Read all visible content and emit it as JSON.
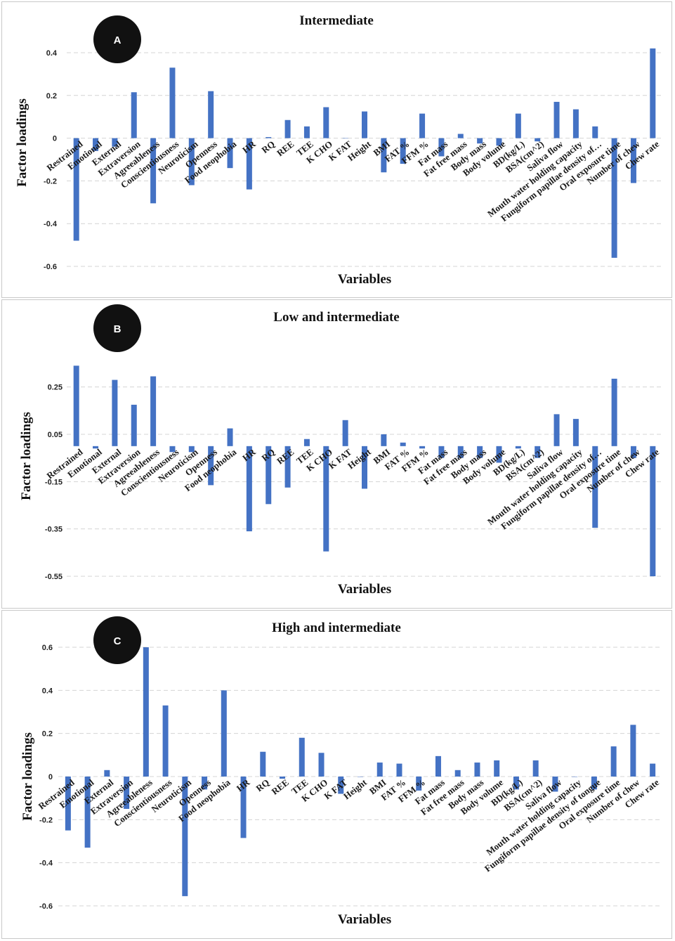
{
  "chart_data": [
    {
      "type": "bar",
      "panel_label": "A",
      "title": "Intermediate",
      "xlabel": "Variables",
      "ylabel": "Factor loadings",
      "ylim": [
        -0.6,
        0.4
      ],
      "yticks": [
        0.4,
        0.2,
        0,
        -0.2,
        -0.4,
        -0.6
      ],
      "ytick_labels": [
        "0.4",
        "0.2",
        "0",
        "-0.2",
        "-0.4",
        "-0.6"
      ],
      "grid": true,
      "categories": [
        "Restrained",
        "Emotional",
        "External",
        "Extraversion",
        "Agreeableness",
        "Conscientiousness",
        "Neuroticism",
        "Openness",
        "Food neophobia",
        "HR",
        "RQ",
        "REE",
        "TEE",
        "K CHO",
        "K FAT",
        "Height",
        "BMI",
        "FAT %",
        "FFM %",
        "Fat mass",
        "Fat free mass",
        "Body mass",
        "Body volume",
        "BD(kg/L)",
        "BSA(cm^2)",
        "Saliva flow",
        "Mouth water holding capacity",
        "Fungiform papillae density of…",
        "Oral exposure time",
        "Number of chew",
        "Chew rate"
      ],
      "series": [
        {
          "name": "Factor loadings",
          "values": [
            -0.48,
            -0.06,
            -0.04,
            0.215,
            -0.305,
            0.33,
            -0.22,
            0.22,
            -0.14,
            -0.24,
            0.005,
            0.085,
            0.055,
            0.145,
            0,
            0.125,
            -0.16,
            -0.12,
            0.115,
            -0.085,
            0.02,
            -0.025,
            -0.035,
            0.115,
            -0.015,
            0.17,
            0.135,
            0.055,
            -0.56,
            -0.21,
            0.42
          ]
        }
      ]
    },
    {
      "type": "bar",
      "panel_label": "B",
      "title": "Low and intermediate",
      "xlabel": "Variables",
      "ylabel": "Factor loadings",
      "ylim": [
        -0.55,
        0.35
      ],
      "yticks": [
        0.25,
        0.05,
        -0.15,
        -0.35,
        -0.55
      ],
      "ytick_labels": [
        "0.25",
        "0.05",
        "-0.15",
        "-0.35",
        "-0.55"
      ],
      "grid": true,
      "categories": [
        "Restrained",
        "Emotional",
        "External",
        "Extraversion",
        "Agreeableness",
        "Conscientiousness",
        "Neuroticism",
        "Openness",
        "Food neophobia",
        "HR",
        "RQ",
        "REE",
        "TEE",
        "K CHO",
        "K FAT",
        "Height",
        "BMI",
        "FAT %",
        "FFM %",
        "Fat mass",
        "Fat free mass",
        "Body mass",
        "Body volume",
        "BD(kg/L)",
        "BSA(cm^2)",
        "Saliva flow",
        "Mouth water holding capacity",
        "Fungiform papillae density of…",
        "Oral exposure time",
        "Number of chew",
        "Chew rate"
      ],
      "series": [
        {
          "name": "Factor loadings",
          "values": [
            0.34,
            -0.01,
            0.28,
            0.175,
            0.295,
            -0.025,
            -0.025,
            -0.165,
            0.075,
            -0.36,
            -0.245,
            -0.175,
            0.03,
            -0.445,
            0.11,
            -0.18,
            0.05,
            0.015,
            -0.01,
            -0.05,
            -0.05,
            -0.05,
            -0.07,
            -0.01,
            -0.05,
            0.135,
            0.115,
            -0.345,
            0.285,
            -0.05,
            -0.55
          ]
        }
      ]
    },
    {
      "type": "bar",
      "panel_label": "C",
      "title": "High and intermediate",
      "xlabel": "Variables",
      "ylabel": "Factor loadings",
      "ylim": [
        -0.6,
        0.6
      ],
      "yticks": [
        0.6,
        0.4,
        0.2,
        0,
        -0.2,
        -0.4,
        -0.6
      ],
      "ytick_labels": [
        "0.6",
        "0.4",
        "0.2",
        "0",
        "-0.2",
        "-0.4",
        "-0.6"
      ],
      "grid": true,
      "categories": [
        "Restrained",
        "Emotional",
        "External",
        "Extraversion",
        "Agreeableness",
        "Conscientiousness",
        "Neuroticism",
        "Openness",
        "Food neophobia",
        "HR",
        "RQ",
        "REE",
        "TEE",
        "K CHO",
        "K FAT",
        "Height",
        "BMI",
        "FAT %",
        "FFM %",
        "Fat mass",
        "Fat free mass",
        "Body mass",
        "Body volume",
        "BD(kg/L)",
        "BSA(cm^2)",
        "Saliva flow",
        "Mouth water holding capacity",
        "Fungiform papillae density of tongue",
        "Oral exposure time",
        "Number of chew",
        "Chew rate"
      ],
      "series": [
        {
          "name": "Factor loadings",
          "values": [
            -0.25,
            -0.33,
            0.03,
            -0.15,
            0.6,
            0.33,
            -0.555,
            -0.06,
            0.4,
            -0.285,
            0.115,
            -0.01,
            0.18,
            0.11,
            -0.08,
            0,
            0.065,
            0.06,
            -0.065,
            0.095,
            0.03,
            0.065,
            0.075,
            -0.06,
            0.075,
            -0.07,
            0,
            -0.06,
            0.14,
            0.24,
            0.06
          ]
        }
      ]
    }
  ],
  "colors": {
    "bar": "#4472c4",
    "badge": "#111111",
    "grid": "#d4d4d4"
  }
}
